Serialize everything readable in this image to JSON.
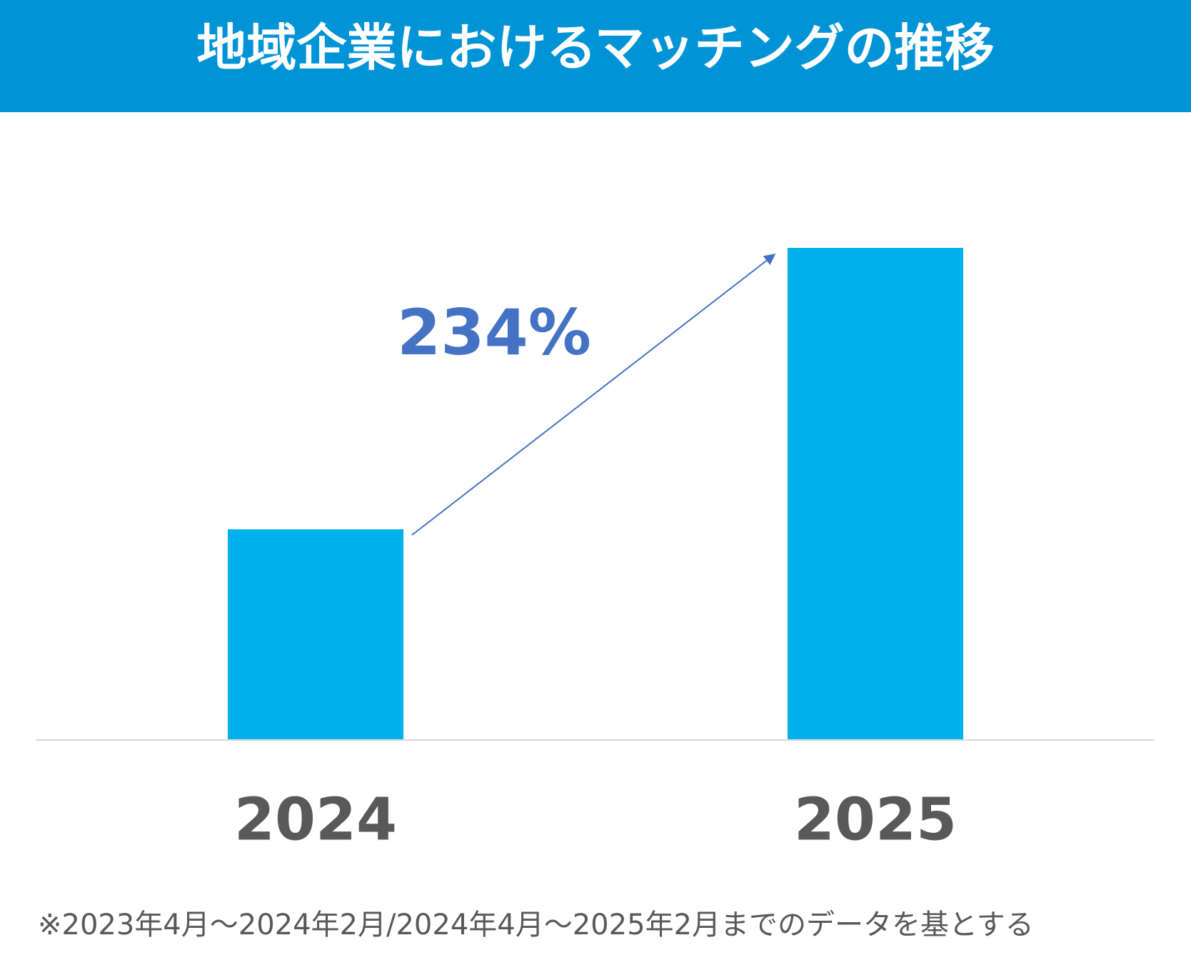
{
  "chart_data": {
    "type": "bar",
    "title": "地域企業におけるマッチングの推移",
    "categories": [
      "2024",
      "2025"
    ],
    "values": [
      100,
      234
    ],
    "color": "#00b0ec",
    "annotation": "234%",
    "footnote": "※2023年4月～2024年2月/2024年4月～2025年2月までのデータを基とする"
  }
}
